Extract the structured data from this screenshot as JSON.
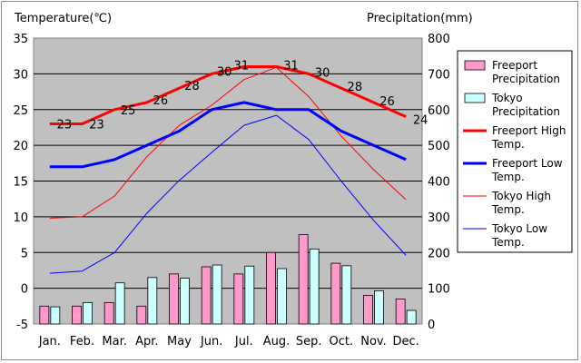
{
  "chart_data": {
    "type": "bar+line",
    "title": "",
    "ylabel_left": "Temperature(℃)",
    "ylabel_right": "Precipitation(mm)",
    "ylim_left": [
      -5,
      35
    ],
    "yticks_left": [
      "-5",
      "0",
      "5",
      "10",
      "15",
      "20",
      "25",
      "30",
      "35"
    ],
    "ylim_right": [
      0,
      800
    ],
    "yticks_right": [
      "0",
      "100",
      "200",
      "300",
      "400",
      "500",
      "600",
      "700",
      "800"
    ],
    "categories": [
      "Jan.",
      "Feb.",
      "Mar.",
      "Apr.",
      "May",
      "Jun.",
      "Jul.",
      "Aug.",
      "Sep.",
      "Oct.",
      "Nov.",
      "Dec."
    ],
    "grid": true,
    "legend_position": "right",
    "bar_series": [
      {
        "name": "Freeport Precipitation",
        "color": "#ff99cc",
        "values": [
          50,
          50,
          60,
          50,
          140,
          160,
          140,
          200,
          250,
          170,
          80,
          70
        ]
      },
      {
        "name": "Tokyo Precipitation",
        "color": "#ccffff",
        "values": [
          48,
          60,
          115,
          130,
          128,
          165,
          162,
          155,
          210,
          163,
          93,
          38
        ]
      }
    ],
    "line_series": [
      {
        "name": "Freeport High Temp.",
        "color": "#ff0000",
        "width": 3,
        "values": [
          23,
          23,
          25,
          26,
          28,
          30,
          31,
          31,
          30,
          28,
          26,
          24
        ],
        "labels": [
          "23",
          "23",
          "25",
          "26",
          "28",
          "30",
          "31",
          "31",
          "30",
          "28",
          "26",
          "24"
        ]
      },
      {
        "name": "Freeport Low Temp.",
        "color": "#0000ff",
        "width": 3,
        "values": [
          17,
          17,
          18,
          20,
          22,
          25,
          26,
          25,
          25,
          22,
          20,
          18
        ]
      },
      {
        "name": "Tokyo High Temp.",
        "color": "#ff0000",
        "width": 1,
        "values": [
          9.8,
          10,
          12.9,
          18.4,
          22.8,
          25.6,
          29.2,
          30.9,
          26.8,
          21.3,
          16.6,
          12.4
        ]
      },
      {
        "name": "Tokyo Low Temp.",
        "color": "#0000ff",
        "width": 1,
        "values": [
          2.1,
          2.4,
          5,
          10.5,
          15.1,
          19,
          22.8,
          24.2,
          20.8,
          15,
          9.5,
          4.6
        ]
      }
    ]
  }
}
